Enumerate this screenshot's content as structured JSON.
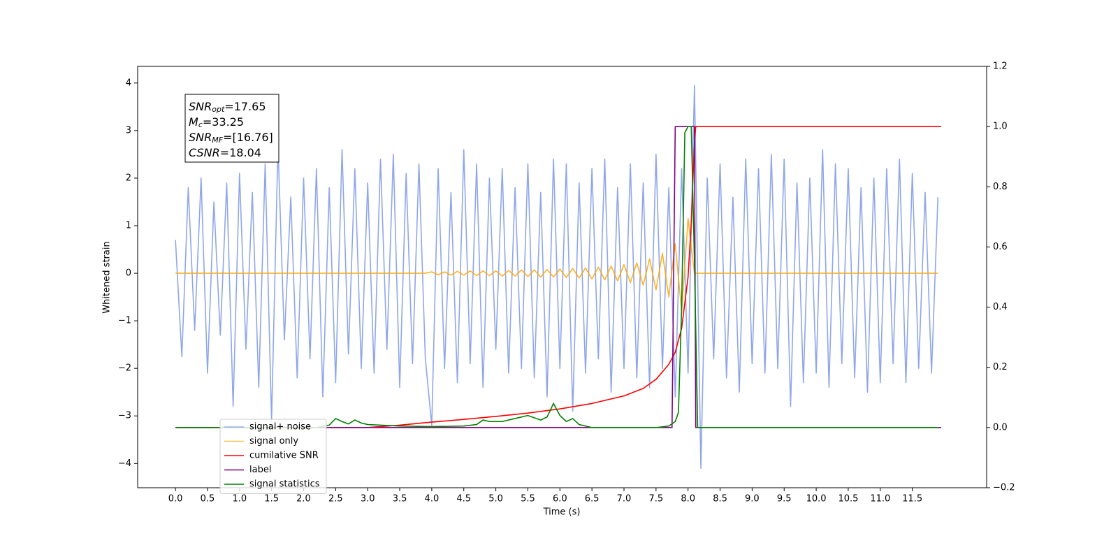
{
  "chart_data": {
    "type": "line",
    "xlabel": "Time (s)",
    "ylabel": "Whitened strain",
    "xlim": [
      -0.59,
      12.66
    ],
    "ylim": [
      -4.51,
      4.35
    ],
    "y2lim": [
      -0.2,
      1.2
    ],
    "xticks": [
      {
        "value": 0,
        "label": "0.0"
      },
      0.5,
      {
        "value": 1,
        "label": "1.0"
      },
      1.5,
      {
        "value": 2,
        "label": "2.0"
      },
      2.5,
      {
        "value": 3,
        "label": "3.0"
      },
      3.5,
      {
        "value": 4,
        "label": "4.0"
      },
      4.5,
      {
        "value": 5,
        "label": "5.0"
      },
      5.5,
      {
        "value": 6,
        "label": "6.0"
      },
      6.5,
      {
        "value": 7,
        "label": "7.0"
      },
      7.5,
      {
        "value": 8,
        "label": "8.0"
      },
      8.5,
      {
        "value": 9,
        "label": "9.0"
      },
      9.5,
      {
        "value": 10,
        "label": "10.0"
      },
      10.5,
      {
        "value": 11,
        "label": "11.0"
      },
      11.5
    ],
    "yticks": [
      {
        "value": -4,
        "label": "−4"
      },
      {
        "value": -3,
        "label": "−3"
      },
      {
        "value": -2,
        "label": "−2"
      },
      {
        "value": -1,
        "label": "−1"
      },
      0,
      1,
      2,
      3,
      4
    ],
    "y2ticks": [
      {
        "value": -0.2,
        "label": "−0.2"
      },
      {
        "value": 0,
        "label": "0.0"
      },
      0.2,
      0.4,
      0.6,
      0.8,
      {
        "value": 1,
        "label": "1.0"
      },
      1.2
    ],
    "legend": "lower left",
    "annotations": [
      {
        "main": "SNR",
        "sub": "opt",
        "rest": "=17.65"
      },
      {
        "main": "M",
        "sub": "c",
        "rest": "=33.25"
      },
      {
        "main": "SNR",
        "sub": "MF",
        "rest": "=[16.76]"
      },
      {
        "main": "CSNR",
        "rest": "=18.04"
      }
    ],
    "series": [
      {
        "name": "signal+ noise",
        "color": "#7b96e6",
        "x": [
          0,
          0.1,
          0.2,
          0.3,
          0.4,
          0.5,
          0.6,
          0.7,
          0.8,
          0.9,
          1,
          1.1,
          1.2,
          1.3,
          1.4,
          1.5,
          1.6,
          1.7,
          1.8,
          1.9,
          2,
          2.1,
          2.2,
          2.3,
          2.4,
          2.5,
          2.6,
          2.7,
          2.8,
          2.9,
          3,
          3.1,
          3.2,
          3.3,
          3.4,
          3.5,
          3.6,
          3.7,
          3.8,
          3.9,
          4,
          4.1,
          4.2,
          4.3,
          4.4,
          4.5,
          4.6,
          4.7,
          4.8,
          4.9,
          5,
          5.1,
          5.2,
          5.3,
          5.4,
          5.5,
          5.6,
          5.7,
          5.8,
          5.9,
          6,
          6.1,
          6.2,
          6.3,
          6.4,
          6.5,
          6.6,
          6.7,
          6.8,
          6.9,
          7,
          7.1,
          7.2,
          7.3,
          7.4,
          7.5,
          7.6,
          7.7,
          7.8,
          7.9,
          8,
          8.1,
          8.2,
          8.3,
          8.4,
          8.5,
          8.6,
          8.7,
          8.8,
          8.9,
          9,
          9.1,
          9.2,
          9.3,
          9.4,
          9.5,
          9.6,
          9.7,
          9.8,
          9.9,
          10,
          10.1,
          10.2,
          10.3,
          10.4,
          10.5,
          10.6,
          10.7,
          10.8,
          10.9,
          11,
          11.1,
          11.2,
          11.3,
          11.4,
          11.5,
          11.6,
          11.7,
          11.8,
          11.9
        ],
        "values": [
          0.7,
          -1.75,
          1.8,
          -1.2,
          2.0,
          -2.1,
          1.5,
          -1.3,
          1.9,
          -2.8,
          2.1,
          -1.6,
          1.7,
          -2.4,
          2.3,
          -3.1,
          2.7,
          -1.4,
          1.6,
          -2.2,
          2.0,
          -1.8,
          2.2,
          -2.6,
          1.8,
          -2.3,
          2.6,
          -1.7,
          2.2,
          -2.0,
          1.9,
          -2.1,
          2.4,
          -1.6,
          2.5,
          -2.4,
          2.1,
          -1.9,
          2.3,
          -1.8,
          -3.2,
          2.2,
          -2.0,
          1.7,
          -2.3,
          2.6,
          -1.9,
          2.3,
          -2.4,
          2.0,
          -1.6,
          2.2,
          -2.1,
          1.8,
          -2.0,
          2.3,
          -2.2,
          1.7,
          -2.6,
          2.4,
          -2.0,
          2.3,
          -2.9,
          1.9,
          -2.1,
          2.2,
          -1.8,
          2.4,
          -2.5,
          1.8,
          -2.0,
          2.3,
          -2.2,
          1.9,
          -2.4,
          2.5,
          -2.0,
          1.8,
          -2.6,
          2.2,
          -2.1,
          3.95,
          -4.1,
          2.0,
          -1.8,
          2.3,
          -2.2,
          1.6,
          -2.5,
          2.4,
          -1.9,
          2.2,
          -2.1,
          2.5,
          -2.0,
          2.4,
          -2.8,
          1.9,
          -2.3,
          2.0,
          -2.1,
          2.6,
          -2.4,
          2.3,
          -1.9,
          2.2,
          -2.2,
          1.8,
          -2.5,
          2.0,
          -2.3,
          2.2,
          -1.9,
          2.4,
          -2.3,
          2.1,
          -2.0,
          1.7,
          -2.1,
          1.6
        ]
      },
      {
        "name": "signal only",
        "color": "#ffa500",
        "x": [
          0,
          0.1,
          0.2,
          0.3,
          0.4,
          0.5,
          0.6,
          0.7,
          0.8,
          0.9,
          1,
          1.1,
          1.2,
          1.3,
          1.4,
          1.5,
          1.6,
          1.7,
          1.8,
          1.9,
          2,
          2.1,
          2.2,
          2.3,
          2.4,
          2.5,
          2.6,
          2.7,
          2.8,
          2.9,
          3,
          3.1,
          3.2,
          3.3,
          3.4,
          3.5,
          3.6,
          3.7,
          3.8,
          3.9,
          4,
          4.1,
          4.2,
          4.3,
          4.4,
          4.5,
          4.6,
          4.7,
          4.8,
          4.9,
          5,
          5.1,
          5.2,
          5.3,
          5.4,
          5.5,
          5.6,
          5.7,
          5.8,
          5.9,
          6,
          6.1,
          6.2,
          6.3,
          6.4,
          6.5,
          6.6,
          6.7,
          6.8,
          6.9,
          7,
          7.1,
          7.2,
          7.3,
          7.4,
          7.5,
          7.6,
          7.7,
          7.8,
          7.9,
          8,
          8.1,
          8.2,
          8.3,
          8.4,
          8.5,
          8.6,
          8.7,
          8.8,
          8.9,
          9,
          9.1,
          9.2,
          9.3,
          9.4,
          9.5,
          9.6,
          9.7,
          9.8,
          9.9,
          10,
          10.1,
          10.2,
          10.3,
          10.4,
          10.5,
          10.6,
          10.7,
          10.8,
          10.9,
          11,
          11.1,
          11.2,
          11.3,
          11.4,
          11.5,
          11.6,
          11.7,
          11.8,
          11.9
        ],
        "values": [
          0,
          0,
          0,
          0,
          0,
          0,
          0,
          0,
          0,
          0,
          0,
          0,
          0,
          0,
          0,
          0,
          0,
          0,
          0,
          0,
          0,
          0,
          0,
          0,
          0,
          0,
          0,
          0,
          0,
          0,
          0,
          0,
          0,
          0,
          0,
          0,
          0,
          0,
          0,
          0,
          0.03,
          -0.03,
          0.03,
          -0.04,
          0.04,
          -0.04,
          0.05,
          -0.05,
          0.05,
          -0.05,
          0.05,
          -0.06,
          0.06,
          -0.06,
          0.07,
          -0.07,
          0.07,
          -0.08,
          0.08,
          -0.08,
          0.09,
          -0.09,
          0.1,
          -0.1,
          0.11,
          -0.12,
          0.13,
          -0.14,
          0.15,
          -0.16,
          0.18,
          -0.2,
          0.22,
          -0.25,
          0.3,
          -0.35,
          0.42,
          -0.5,
          0.62,
          -0.8,
          1.15,
          0,
          0,
          0,
          0,
          0,
          0,
          0,
          0,
          0,
          0,
          0,
          0,
          0,
          0,
          0,
          0,
          0,
          0,
          0,
          0,
          0,
          0,
          0,
          0,
          0,
          0,
          0,
          0,
          0,
          0,
          0,
          0,
          0,
          0,
          0,
          0,
          0,
          0,
          0
        ]
      },
      {
        "name": "cumilative SNR",
        "color": "#ff0000",
        "axis": "y2",
        "x": [
          0,
          3,
          3.5,
          4,
          4.5,
          5,
          5.5,
          6,
          6.5,
          7,
          7.3,
          7.5,
          7.7,
          7.8,
          7.9,
          8.0,
          8.05,
          8.1,
          8.12,
          11.95
        ],
        "values": [
          0,
          0,
          0.008,
          0.018,
          0.027,
          0.037,
          0.048,
          0.062,
          0.08,
          0.105,
          0.13,
          0.16,
          0.21,
          0.25,
          0.33,
          0.5,
          0.68,
          0.95,
          1.0,
          1.0
        ]
      },
      {
        "name": "label",
        "color": "#800080",
        "axis": "y2",
        "x": [
          0,
          7.75,
          7.8,
          8.1,
          8.12,
          11.95
        ],
        "values": [
          0,
          0,
          1,
          1,
          0,
          0
        ]
      },
      {
        "name": "signal statistics",
        "color": "#008000",
        "axis": "y2",
        "x": [
          0,
          2.2,
          2.4,
          2.5,
          2.6,
          2.7,
          2.8,
          2.9,
          3.0,
          3.5,
          4.0,
          4.5,
          4.7,
          4.8,
          4.9,
          5.1,
          5.3,
          5.5,
          5.7,
          5.8,
          5.9,
          6.0,
          6.1,
          6.2,
          6.3,
          6.5,
          7.5,
          7.7,
          7.8,
          7.85,
          7.9,
          7.95,
          8.0,
          8.05,
          8.1,
          8.15,
          11.9
        ],
        "values": [
          0,
          0,
          0.008,
          0.03,
          0.02,
          0.012,
          0.025,
          0.015,
          0.01,
          0.005,
          0.003,
          0.005,
          0.01,
          0.025,
          0.02,
          0.02,
          0.03,
          0.04,
          0.025,
          0.035,
          0.08,
          0.04,
          0.02,
          0.03,
          0.01,
          0,
          0,
          0.005,
          0.02,
          0.05,
          0.4,
          0.98,
          1.0,
          1.0,
          0.55,
          0,
          0
        ]
      }
    ]
  }
}
